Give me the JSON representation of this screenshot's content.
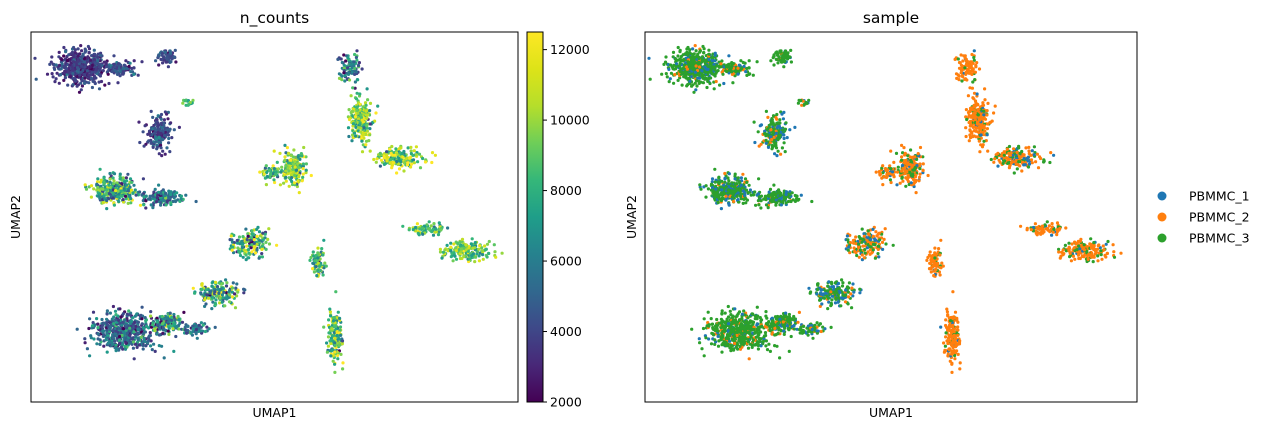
{
  "chart_data": [
    {
      "type": "scatter",
      "title": "n_counts",
      "xlabel": "UMAP1",
      "ylabel": "UMAP2",
      "colorbar": {
        "colormap": "viridis",
        "range": [
          2000,
          12500
        ],
        "ticks": [
          2000,
          4000,
          6000,
          8000,
          10000,
          12000
        ],
        "tick_labels": [
          "2000",
          "4000",
          "6000",
          "8000",
          "10000",
          "12000"
        ]
      },
      "xlim": [
        -11,
        15
      ],
      "ylim": [
        -11,
        10
      ]
    },
    {
      "type": "scatter",
      "title": "sample",
      "xlabel": "UMAP1",
      "ylabel": "UMAP2",
      "legend_position": "right",
      "series": [
        {
          "name": "PBMMC_1",
          "color": "#1f77b4"
        },
        {
          "name": "PBMMC_2",
          "color": "#ff7f0e"
        },
        {
          "name": "PBMMC_3",
          "color": "#2ca02c"
        }
      ],
      "xlim": [
        -11,
        15
      ],
      "ylim": [
        -11,
        10
      ]
    }
  ]
}
